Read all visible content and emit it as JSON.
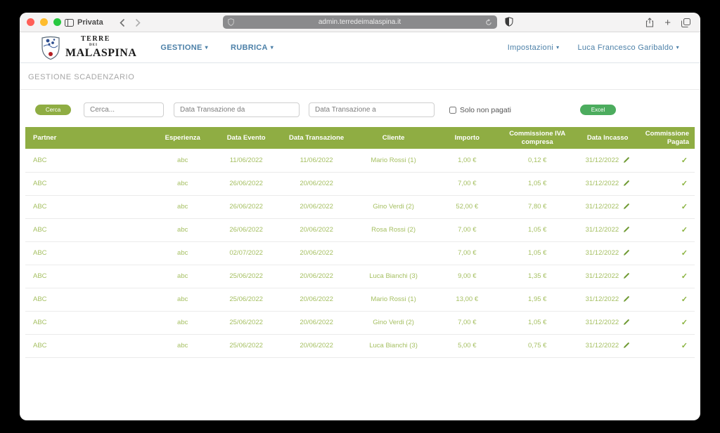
{
  "browser": {
    "private_label": "Privata",
    "url": "admin.terredeimalaspina.it"
  },
  "header": {
    "logo": {
      "line1": "TERRE",
      "line2": "DEI",
      "line3": "MALASPINA"
    },
    "nav": {
      "gestione": "GESTIONE",
      "rubrica": "RUBRICA"
    },
    "nav_right": {
      "settings": "Impostazioni",
      "user": "Luca Francesco Garibaldo"
    }
  },
  "page": {
    "title": "GESTIONE SCADENZARIO"
  },
  "filters": {
    "search_button": "Cerca",
    "search_placeholder": "Cerca...",
    "date_from_placeholder": "Data Transazione da",
    "date_to_placeholder": "Data Transazione a",
    "checkbox_label": "Solo non pagati",
    "excel_button": "Excel"
  },
  "icons": {
    "paid_check": "✓",
    "caret": "▾"
  },
  "colors": {
    "olive_green": "#8fad43",
    "cell_green": "#a6c063",
    "excel_green": "#4cac5e",
    "nav_blue": "#4c80a8"
  },
  "table": {
    "columns": [
      "Partner",
      "Esperienza",
      "Data Evento",
      "Data Transazione",
      "Cliente",
      "Importo",
      "Commissione IVA compresa",
      "Data Incasso",
      "Commissione Pagata"
    ],
    "rows": [
      {
        "partner": "ABC",
        "esperienza": "abc",
        "data_evento": "11/06/2022",
        "data_transazione": "11/06/2022",
        "cliente": "Mario Rossi (1)",
        "importo": "1,00 €",
        "commissione_iva": "0,12 €",
        "data_incasso": "31/12/2022",
        "pagata": true
      },
      {
        "partner": "ABC",
        "esperienza": "abc",
        "data_evento": "26/06/2022",
        "data_transazione": "20/06/2022",
        "cliente": "",
        "importo": "7,00 €",
        "commissione_iva": "1,05 €",
        "data_incasso": "31/12/2022",
        "pagata": true
      },
      {
        "partner": "ABC",
        "esperienza": "abc",
        "data_evento": "26/06/2022",
        "data_transazione": "20/06/2022",
        "cliente": "Gino Verdi (2)",
        "importo": "52,00 €",
        "commissione_iva": "7,80 €",
        "data_incasso": "31/12/2022",
        "pagata": true
      },
      {
        "partner": "ABC",
        "esperienza": "abc",
        "data_evento": "26/06/2022",
        "data_transazione": "20/06/2022",
        "cliente": "Rosa Rossi (2)",
        "importo": "7,00 €",
        "commissione_iva": "1,05 €",
        "data_incasso": "31/12/2022",
        "pagata": true
      },
      {
        "partner": "ABC",
        "esperienza": "abc",
        "data_evento": "02/07/2022",
        "data_transazione": "20/06/2022",
        "cliente": "",
        "importo": "7,00 €",
        "commissione_iva": "1,05 €",
        "data_incasso": "31/12/2022",
        "pagata": true
      },
      {
        "partner": "ABC",
        "esperienza": "abc",
        "data_evento": "25/06/2022",
        "data_transazione": "20/06/2022",
        "cliente": "Luca Bianchi (3)",
        "importo": "9,00 €",
        "commissione_iva": "1,35 €",
        "data_incasso": "31/12/2022",
        "pagata": true
      },
      {
        "partner": "ABC",
        "esperienza": "abc",
        "data_evento": "25/06/2022",
        "data_transazione": "20/06/2022",
        "cliente": "Mario Rossi (1)",
        "importo": "13,00 €",
        "commissione_iva": "1,95 €",
        "data_incasso": "31/12/2022",
        "pagata": true
      },
      {
        "partner": "ABC",
        "esperienza": "abc",
        "data_evento": "25/06/2022",
        "data_transazione": "20/06/2022",
        "cliente": "Gino Verdi (2)",
        "importo": "7,00 €",
        "commissione_iva": "1,05 €",
        "data_incasso": "31/12/2022",
        "pagata": true
      },
      {
        "partner": "ABC",
        "esperienza": "abc",
        "data_evento": "25/06/2022",
        "data_transazione": "20/06/2022",
        "cliente": "Luca Bianchi (3)",
        "importo": "5,00 €",
        "commissione_iva": "0,75 €",
        "data_incasso": "31/12/2022",
        "pagata": true
      }
    ]
  }
}
